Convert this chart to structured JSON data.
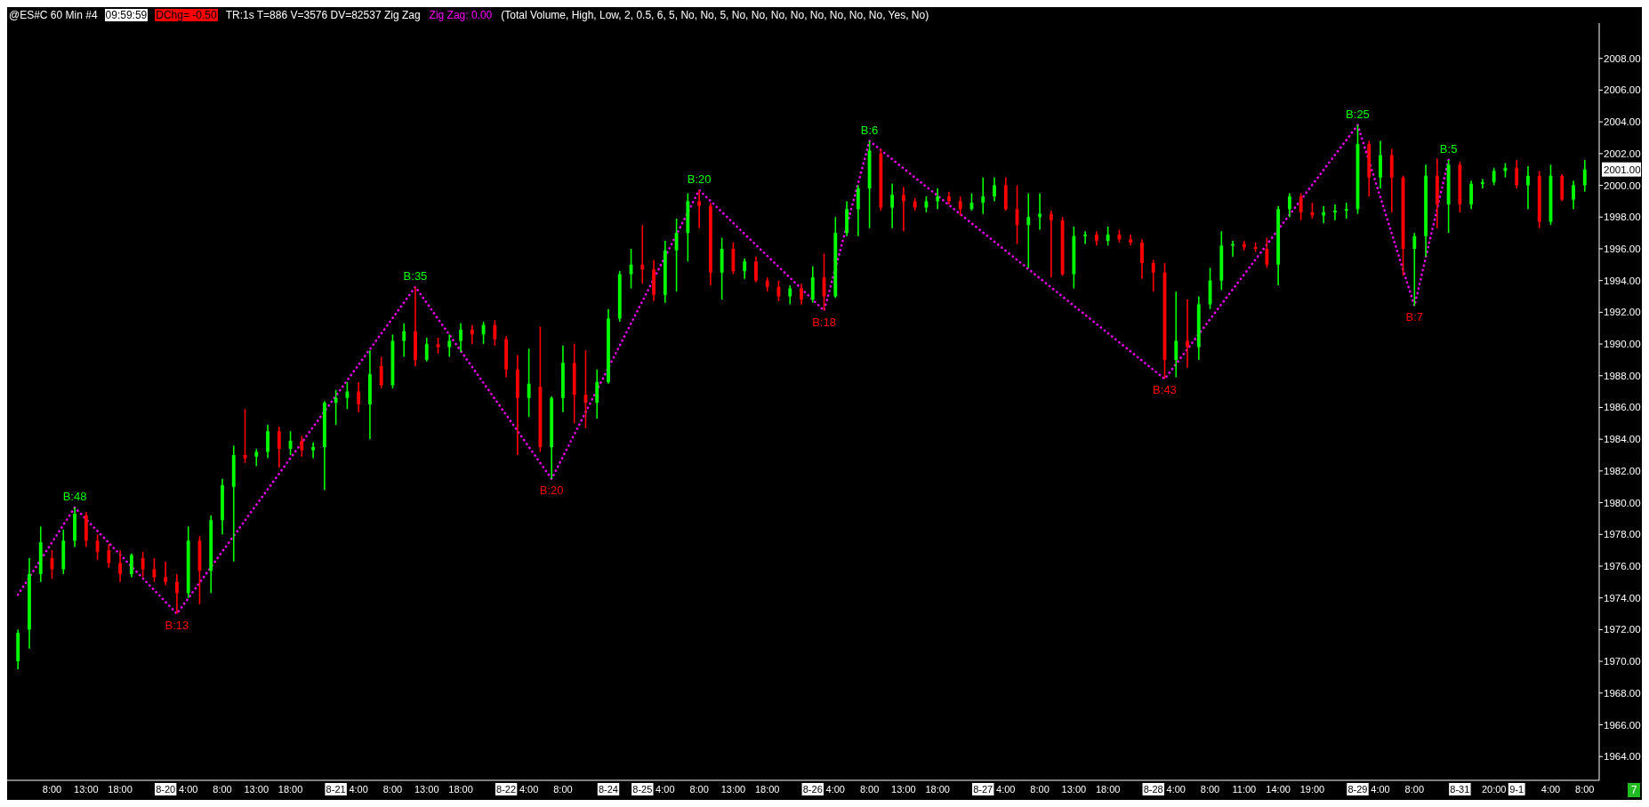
{
  "chart_data": {
    "type": "candlestick",
    "title": "@ES#C  60 Min  #4",
    "annotations": [
      "09:59:59",
      "DChg= -0.50",
      "TR:1s T=886 V=3576 DV=82537  Zig Zag",
      "Zig Zag: 0.00",
      "(Total Volume, High, Low, 2, 0.5, 6, 5, No, No, 5, No, No, No, No, No, No, No, No, Yes, No)",
      "7",
      {
        "text": "B:48",
        "y": 1979.7
      },
      {
        "text": "B:13",
        "y": 1973
      },
      {
        "text": "B:35",
        "y": 1993.6
      },
      {
        "text": "B:20",
        "y": 1981.5
      },
      {
        "text": "B:20",
        "y": 1999.7
      },
      {
        "text": "B:18",
        "y": 1992.1
      },
      {
        "text": "B:6",
        "y": 2002.8
      },
      {
        "text": "B:43",
        "y": 1987.8
      },
      {
        "text": "B:25",
        "y": 2003.8
      },
      {
        "text": "B:7",
        "y": 1992.4
      },
      {
        "text": "B:5",
        "y": 2001.6
      },
      {
        "text": "2001.00",
        "y": 2001
      }
    ],
    "categories": [
      null,
      null,
      null,
      "8:00",
      null,
      null,
      "13:00",
      null,
      null,
      "18:00",
      null,
      null,
      null,
      "8-20",
      null,
      "4:00",
      null,
      null,
      "8:00",
      null,
      null,
      "13:00",
      null,
      null,
      "18:00",
      null,
      null,
      null,
      "8-21",
      null,
      "4:00",
      null,
      null,
      "8:00",
      null,
      null,
      "13:00",
      null,
      null,
      "18:00",
      null,
      null,
      null,
      "8-22",
      null,
      "4:00",
      null,
      null,
      "8:00",
      null,
      null,
      null,
      "8-24",
      null,
      null,
      "8-25",
      null,
      "4:00",
      null,
      null,
      "8:00",
      null,
      null,
      "13:00",
      null,
      null,
      "18:00",
      null,
      null,
      null,
      "8-26",
      null,
      "4:00",
      null,
      null,
      "8:00",
      null,
      null,
      "13:00",
      null,
      null,
      "18:00",
      null,
      null,
      null,
      "8-27",
      null,
      "4:00",
      null,
      null,
      "8:00",
      null,
      null,
      "13:00",
      null,
      null,
      "18:00",
      null,
      null,
      null,
      "8-28",
      null,
      "4:00",
      null,
      null,
      "8:00",
      null,
      null,
      "11:00",
      null,
      null,
      "14:00",
      null,
      null,
      "19:00",
      null,
      null,
      null,
      "8-29",
      null,
      "4:00",
      null,
      null,
      "8:00",
      null,
      null,
      null,
      "8-31",
      null,
      null,
      "20:00",
      null,
      "9-1",
      null,
      null,
      "4:00",
      null,
      null,
      "8:00"
    ],
    "series": [
      {
        "ohlc": [
          [
            1970,
            1972,
            1969.5,
            1971.8
          ],
          [
            1972,
            1976.5,
            1970.8,
            1975.5
          ],
          [
            1975.5,
            1978.5,
            1975,
            1977.5
          ],
          [
            1976.5,
            1977,
            1975.2,
            1975.8
          ],
          [
            1975.8,
            1978.3,
            1975.5,
            1977.6
          ],
          [
            1977.6,
            1979.7,
            1977.2,
            1979.3
          ],
          [
            1979.2,
            1979.4,
            1977.2,
            1977.6
          ],
          [
            1977.6,
            1978,
            1976.4,
            1976.9
          ],
          [
            1977,
            1977.4,
            1975.9,
            1976.2
          ],
          [
            1976.2,
            1977,
            1975,
            1975.5
          ],
          [
            1975.5,
            1976.8,
            1975.3,
            1976.7
          ],
          [
            1976.5,
            1976.9,
            1975.3,
            1975.8
          ],
          [
            1975.8,
            1976.5,
            1975,
            1975.3
          ],
          [
            1975.3,
            1976.3,
            1974.8,
            1975
          ],
          [
            1975,
            1975.5,
            1973,
            1974.3
          ],
          [
            1974.3,
            1978.5,
            1974,
            1977.6
          ],
          [
            1977.6,
            1977.9,
            1973.6,
            1975.7
          ],
          [
            1975.7,
            1979.2,
            1974.3,
            1978.9
          ],
          [
            1978.9,
            1981.5,
            1978,
            1981.1
          ],
          [
            1981,
            1983.6,
            1976.3,
            1983
          ],
          [
            1983,
            1985.9,
            1982.5,
            1982.8
          ],
          [
            1982.9,
            1983.4,
            1982.3,
            1983.2
          ],
          [
            1983.2,
            1984.9,
            1982.8,
            1984.5
          ],
          [
            1984.5,
            1984.8,
            1982.2,
            1983.4
          ],
          [
            1983.4,
            1984.5,
            1983,
            1983.9
          ],
          [
            1983.9,
            1984.2,
            1982.9,
            1983.3
          ],
          [
            1983.3,
            1983.8,
            1982.8,
            1983.5
          ],
          [
            1983.5,
            1986.4,
            1980.8,
            1986.3
          ],
          [
            1986.3,
            1987.1,
            1984.9,
            1986.6
          ],
          [
            1986.6,
            1987.6,
            1985.9,
            1987
          ],
          [
            1987,
            1987.6,
            1985.7,
            1986.2
          ],
          [
            1986.2,
            1989.6,
            1984,
            1988.1
          ],
          [
            1988.6,
            1989.2,
            1987.2,
            1987.4
          ],
          [
            1987.4,
            1990.6,
            1987.2,
            1990.2
          ],
          [
            1990.2,
            1991.3,
            1989.2,
            1990.8
          ],
          [
            1990.8,
            1993.6,
            1988.6,
            1989
          ],
          [
            1989,
            1990.4,
            1988.9,
            1990
          ],
          [
            1990,
            1990.4,
            1989.4,
            1989.8
          ],
          [
            1989.8,
            1990.6,
            1989.2,
            1990.2
          ],
          [
            1990.2,
            1991.3,
            1989.5,
            1990.9
          ],
          [
            1990.9,
            1991.2,
            1990,
            1990.6
          ],
          [
            1990.6,
            1991.4,
            1990,
            1991.2
          ],
          [
            1991.2,
            1991.5,
            1989.9,
            1990.3
          ],
          [
            1990.3,
            1990.5,
            1987.9,
            1988.4
          ],
          [
            1988.4,
            1989.3,
            1983,
            1986.6
          ],
          [
            1986.6,
            1989.7,
            1985.4,
            1987.5
          ],
          [
            1987.3,
            1991.1,
            1983.2,
            1983.5
          ],
          [
            1983.5,
            1986.7,
            1981.5,
            1986.6
          ],
          [
            1986.6,
            1989.9,
            1985.7,
            1988.8
          ],
          [
            1988.8,
            1990,
            1985,
            1986.8
          ],
          [
            1986.8,
            1989.6,
            1984.7,
            1986.3
          ],
          [
            1986.3,
            1988.4,
            1985.3,
            1987.6
          ],
          [
            1987.6,
            1992.2,
            1987.5,
            1991.6
          ],
          [
            1991.6,
            1994.6,
            1991.4,
            1994.4
          ],
          [
            1994.4,
            1996,
            1993.5,
            1995
          ],
          [
            1995,
            1997.5,
            1993.8,
            1994.7
          ],
          [
            1994.7,
            1995.3,
            1992.7,
            1993.1
          ],
          [
            1993.1,
            1996.5,
            1992.6,
            1995.9
          ],
          [
            1995.9,
            1997.9,
            1993.3,
            1997
          ],
          [
            1997,
            1999.5,
            1995.2,
            1999
          ],
          [
            1999,
            1999.7,
            1997.3,
            1998.7
          ],
          [
            1998.7,
            1998.9,
            1993.7,
            1994.5
          ],
          [
            1994.5,
            1996.7,
            1992.8,
            1996
          ],
          [
            1996,
            1996.4,
            1994.4,
            1994.6
          ],
          [
            1994.6,
            1995.4,
            1994.1,
            1995.2
          ],
          [
            1995.2,
            1995.5,
            1993.9,
            1994
          ],
          [
            1994,
            1994.2,
            1993.3,
            1993.6
          ],
          [
            1993.6,
            1994,
            1992.7,
            1993
          ],
          [
            1993,
            1993.7,
            1992.5,
            1993.5
          ],
          [
            1993.5,
            1993.8,
            1992.5,
            1992.8
          ],
          [
            1992.8,
            1994.9,
            1992.6,
            1994.2
          ],
          [
            1994.2,
            1995.7,
            1992.1,
            1993
          ],
          [
            1993,
            1998,
            1992.9,
            1997
          ],
          [
            1997,
            1999,
            1996.8,
            1998.5
          ],
          [
            1998.5,
            2000,
            1996.8,
            1999.8
          ],
          [
            1999.8,
            2002.8,
            1997.3,
            2002.2
          ],
          [
            2002,
            2002.3,
            1998.4,
            1998.6
          ],
          [
            1998.6,
            2000.1,
            1997.3,
            1999.4
          ],
          [
            1999.4,
            1999.9,
            1997.1,
            1999
          ],
          [
            1999,
            1999.2,
            1998.4,
            1998.6
          ],
          [
            1998.6,
            1999.3,
            1998.3,
            1999
          ],
          [
            1999,
            1999.8,
            1998.5,
            1999.3
          ],
          [
            1999.3,
            1999.6,
            1998.8,
            1999
          ],
          [
            1999,
            1999.3,
            1998.1,
            1998.5
          ],
          [
            1998.5,
            1999.5,
            1998.4,
            1998.9
          ],
          [
            1998.9,
            2000.5,
            1998.2,
            1999.3
          ],
          [
            1999.3,
            2000.5,
            1999,
            2000
          ],
          [
            2000,
            2000.5,
            1998.4,
            1998.5
          ],
          [
            1998.5,
            2000,
            1996.3,
            1997.5
          ],
          [
            1997.5,
            1999.5,
            1994.8,
            1998
          ],
          [
            1998,
            1999.5,
            1997.2,
            1998.2
          ],
          [
            1998.2,
            1998.4,
            1994.2,
            1997.8
          ],
          [
            1997.8,
            1998,
            1994.3,
            1994.4
          ],
          [
            1994.4,
            1997.4,
            1993.5,
            1996.8
          ],
          [
            1996.8,
            1997.1,
            1996.3,
            1996.9
          ],
          [
            1996.9,
            1997.1,
            1996.2,
            1996.5
          ],
          [
            1996.5,
            1997.4,
            1996.2,
            1996.9
          ],
          [
            1996.9,
            1997.2,
            1996.4,
            1996.6
          ],
          [
            1996.6,
            1996.9,
            1996.2,
            1996.4
          ],
          [
            1996.4,
            1996.6,
            1994.1,
            1995.1
          ],
          [
            1995.1,
            1995.3,
            1993.3,
            1994.5
          ],
          [
            1994.5,
            1995.1,
            1987.8,
            1989
          ],
          [
            1989,
            1993.3,
            1987.9,
            1990.2
          ],
          [
            1990.2,
            1992.8,
            1988.5,
            1989.8
          ],
          [
            1989.8,
            1993,
            1989,
            1992.5
          ],
          [
            1992.5,
            1994.8,
            1992.2,
            1994
          ],
          [
            1994,
            1997.1,
            1993.4,
            1996.2
          ],
          [
            1996.2,
            1996.5,
            1995.5,
            1996.3
          ],
          [
            1996.3,
            1996.5,
            1995.9,
            1996.1
          ],
          [
            1996.1,
            1996.4,
            1995.8,
            1996
          ],
          [
            1996,
            1996.7,
            1994.8,
            1995
          ],
          [
            1995,
            1998.7,
            1993.7,
            1998.5
          ],
          [
            1998.5,
            1999.5,
            1998,
            1999.3
          ],
          [
            1999.3,
            1999.5,
            1997.8,
            1998.3
          ],
          [
            1998.3,
            1998.9,
            1997.9,
            1998.1
          ],
          [
            1998.1,
            1998.7,
            1997.6,
            1998.3
          ],
          [
            1998.3,
            1998.8,
            1997.8,
            1998.4
          ],
          [
            1998.4,
            1998.9,
            1997.9,
            1998.5
          ],
          [
            1998.5,
            2003.8,
            1998.2,
            2002.6
          ],
          [
            2002.6,
            2002.8,
            1999.3,
            2000.5
          ],
          [
            2000.5,
            2002.8,
            1999.8,
            2001.9
          ],
          [
            2001.9,
            2002.3,
            1998.3,
            2000.5
          ],
          [
            2000.5,
            2000.6,
            1994.3,
            1996
          ],
          [
            1996,
            1997,
            1992.4,
            1996.8
          ],
          [
            1996.8,
            2001.3,
            1995.5,
            2000.6
          ],
          [
            2000.6,
            2001.7,
            1997.3,
            1998.8
          ],
          [
            1998.8,
            2001.6,
            1997,
            2001.3
          ],
          [
            2001.3,
            2001.5,
            1998.3,
            1998.8
          ],
          [
            1998.8,
            2000.3,
            1998.5,
            2000.1
          ],
          [
            2000.1,
            2000.4,
            1999.8,
            2000.2
          ],
          [
            2000.2,
            2001.1,
            2000,
            2000.9
          ],
          [
            2000.9,
            2001.4,
            2000.5,
            2001.1
          ],
          [
            2001.1,
            2001.6,
            1999.8,
            2000
          ],
          [
            2000,
            2001.2,
            1998.5,
            2000.6
          ],
          [
            2000.6,
            2000.9,
            1997.3,
            1997.7
          ],
          [
            1997.7,
            2001.3,
            1997.5,
            2000.6
          ],
          [
            2000.6,
            2000.7,
            1999,
            1999.1
          ],
          [
            1999.1,
            2000.3,
            1998.5,
            2000
          ],
          [
            2000,
            2001.6,
            1999.6,
            2001
          ]
        ],
        "colors": [
          "#00ff00",
          "#00ff00",
          "#00ff00",
          "#ff0000",
          "#00ff00",
          "#00ff00",
          "#ff0000",
          "#ff0000",
          "#ff0000",
          "#ff0000",
          "#00ff00",
          "#ff0000",
          "#ff0000",
          "#ff0000",
          "#ff0000",
          "#00ff00",
          "#ff0000",
          "#00ff00",
          "#00ff00",
          "#00ff00",
          "#ff0000",
          "#00ff00",
          "#00ff00",
          "#ff0000",
          "#00ff00",
          "#ff0000",
          "#00ff00",
          "#00ff00",
          "#00ff00",
          "#00ff00",
          "#ff0000",
          "#00ff00",
          "#ff0000",
          "#00ff00",
          "#00ff00",
          "#ff0000",
          "#00ff00",
          "#ff0000",
          "#00ff00",
          "#00ff00",
          "#ff0000",
          "#00ff00",
          "#ff0000",
          "#ff0000",
          "#ff0000",
          "#00ff00",
          "#ff0000",
          "#00ff00",
          "#00ff00",
          "#ff0000",
          "#ff0000",
          "#00ff00",
          "#00ff00",
          "#00ff00",
          "#00ff00",
          "#ff0000",
          "#ff0000",
          "#00ff00",
          "#00ff00",
          "#00ff00",
          "#ff0000",
          "#ff0000",
          "#00ff00",
          "#ff0000",
          "#00ff00",
          "#ff0000",
          "#ff0000",
          "#ff0000",
          "#00ff00",
          "#ff0000",
          "#00ff00",
          "#ff0000",
          "#00ff00",
          "#00ff00",
          "#00ff00",
          "#00ff00",
          "#ff0000",
          "#00ff00",
          "#ff0000",
          "#ff0000",
          "#00ff00",
          "#00ff00",
          "#ff0000",
          "#ff0000",
          "#00ff00",
          "#00ff00",
          "#00ff00",
          "#ff0000",
          "#ff0000",
          "#00ff00",
          "#00ff00",
          "#ff0000",
          "#ff0000",
          "#00ff00",
          "#00ff00",
          "#ff0000",
          "#00ff00",
          "#ff0000",
          "#ff0000",
          "#ff0000",
          "#ff0000",
          "#ff0000",
          "#00ff00",
          "#ff0000",
          "#00ff00",
          "#00ff00",
          "#00ff00",
          "#00ff00",
          "#ff0000",
          "#ff0000",
          "#ff0000",
          "#00ff00",
          "#00ff00",
          "#ff0000",
          "#ff0000",
          "#00ff00",
          "#00ff00",
          "#00ff00",
          "#00ff00",
          "#ff0000",
          "#00ff00",
          "#ff0000",
          "#ff0000",
          "#00ff00",
          "#00ff00",
          "#ff0000",
          "#00ff00",
          "#ff0000",
          "#00ff00",
          "#00ff00",
          "#00ff00",
          "#00ff00",
          "#ff0000",
          "#00ff00",
          "#ff0000",
          "#00ff00",
          "#ff0000",
          "#00ff00",
          "#00ff00"
        ]
      },
      {
        "type": "line",
        "color": "#ff00ff",
        "line_style": "dotted",
        "values": [
          1974.2,
          null,
          null,
          null,
          null,
          1979.7,
          null,
          null,
          null,
          null,
          null,
          null,
          null,
          null,
          1973,
          null,
          null,
          null,
          null,
          null,
          null,
          null,
          null,
          null,
          null,
          null,
          null,
          null,
          null,
          null,
          null,
          null,
          null,
          null,
          null,
          1993.6,
          null,
          null,
          null,
          null,
          null,
          null,
          null,
          null,
          null,
          null,
          null,
          1981.5,
          null,
          null,
          null,
          null,
          null,
          null,
          null,
          null,
          null,
          null,
          null,
          null,
          1999.7,
          null,
          null,
          null,
          null,
          null,
          null,
          null,
          null,
          null,
          null,
          1992.1,
          null,
          null,
          null,
          2002.8,
          null,
          null,
          null,
          null,
          null,
          null,
          null,
          null,
          null,
          null,
          null,
          null,
          null,
          null,
          null,
          null,
          null,
          null,
          null,
          null,
          null,
          null,
          null,
          null,
          null,
          1987.8,
          null,
          null,
          null,
          null,
          null,
          null,
          null,
          null,
          null,
          null,
          null,
          null,
          null,
          null,
          null,
          null,
          2003.8,
          null,
          null,
          null,
          null,
          1992.4,
          null,
          null,
          2001.6,
          null,
          null,
          null,
          null,
          null,
          null,
          null,
          null,
          null,
          null,
          null,
          null
        ]
      }
    ],
    "ylim": [
      1962.5,
      2010
    ],
    "yticks": [
      {
        "value": 1964,
        "label": "1964.00"
      },
      {
        "value": 1966,
        "label": "1966.00"
      },
      {
        "value": 1968,
        "label": "1968.00"
      },
      {
        "value": 1970,
        "label": "1970.00"
      },
      {
        "value": 1972,
        "label": "1972.00"
      },
      {
        "value": 1974,
        "label": "1974.00"
      },
      {
        "value": 1976,
        "label": "1976.00"
      },
      {
        "value": 1978,
        "label": "1978.00"
      },
      {
        "value": 1980,
        "label": "1980.00"
      },
      {
        "value": 1982,
        "label": "1982.00"
      },
      {
        "value": 1984,
        "label": "1984.00"
      },
      {
        "value": 1986,
        "label": "1986.00"
      },
      {
        "value": 1988,
        "label": "1988.00"
      },
      {
        "value": 1990,
        "label": "1990.00"
      },
      {
        "value": 1992,
        "label": "1992.00"
      },
      {
        "value": 1994,
        "label": "1994.00"
      },
      {
        "value": 1996,
        "label": "1996.00"
      },
      {
        "value": 1998,
        "label": "1998.00"
      },
      {
        "value": 2000,
        "label": "2000.00"
      },
      {
        "value": 2002,
        "label": "2002.00"
      },
      {
        "value": 2004,
        "label": "2004.00"
      },
      {
        "value": 2006,
        "label": "2006.00"
      },
      {
        "value": 2008,
        "label": "2008.00"
      }
    ]
  }
}
